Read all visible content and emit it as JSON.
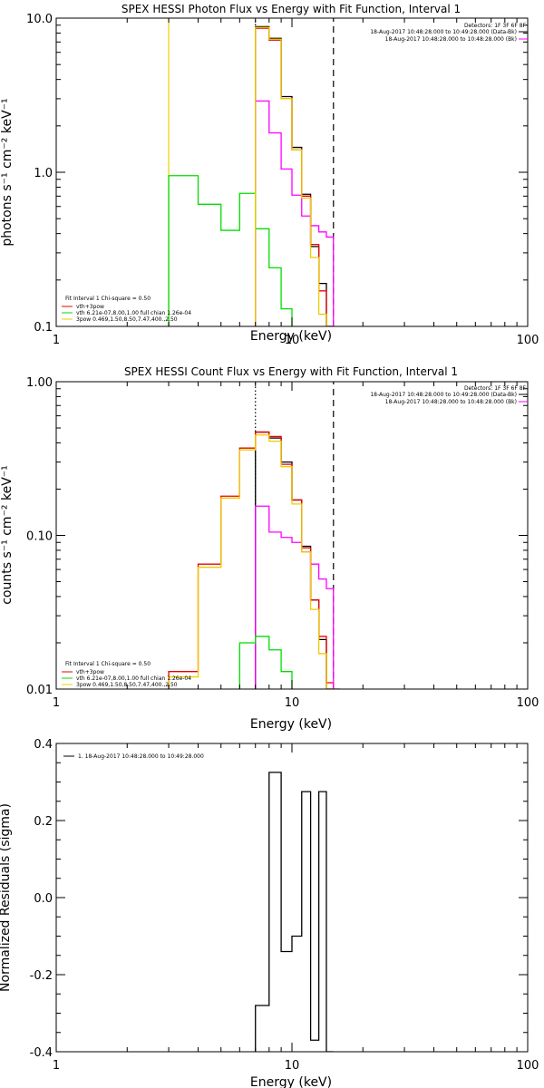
{
  "chart_data": [
    {
      "type": "line",
      "title": "SPEX HESSI Photon Flux vs Energy with Fit Function, Interval 1",
      "xlabel": "Energy (keV)",
      "ylabel": "photons s⁻¹ cm⁻² keV⁻¹",
      "xscale": "log",
      "yscale": "log",
      "xlim": [
        1,
        100
      ],
      "ylim": [
        0.1,
        10
      ],
      "xticks": [
        1,
        10,
        100
      ],
      "xtick_labels": [
        "1",
        "10",
        "100"
      ],
      "yticks": [
        0.1,
        1,
        10
      ],
      "ytick_labels": [
        "0.1",
        "1.0",
        "10.0"
      ],
      "top_right_labels": [
        "Detectors: 1F 3F 6F 8F",
        "18-Aug-2017 10:48:28.000 to 10:49:28.000 (Data-Bk)",
        "18-Aug-2017 10:48:28.000 to 10:48:28.000 (Bk)"
      ],
      "fit_labels": [
        "Fit Interval 1    Chi-square = 0.50",
        "vth+3pow",
        "vth 6.21e-07,8.00,1.00  full chian 1.26e-04",
        "3pow 0.469,1.50,8.50,7.47,400.,2.50"
      ],
      "series": [
        {
          "color": "#000000",
          "edges": [
            7,
            8,
            9,
            10,
            11,
            12,
            13,
            14,
            15
          ],
          "values": [
            8.8,
            7.4,
            3.1,
            1.45,
            0.72,
            0.33,
            0.19,
            0.1
          ]
        },
        {
          "color": "#ee0000",
          "edges": [
            7,
            8,
            9,
            10,
            11,
            12,
            13,
            14,
            15
          ],
          "values": [
            8.6,
            7.2,
            3.0,
            1.4,
            0.7,
            0.34,
            0.17,
            0.1
          ]
        },
        {
          "color": "#ff00ff",
          "edges": [
            7,
            8,
            9,
            10,
            11,
            12,
            13,
            14,
            15
          ],
          "values": [
            2.9,
            1.8,
            1.05,
            0.71,
            0.52,
            0.45,
            0.41,
            0.38
          ]
        },
        {
          "color": "#00dd00",
          "edges": [
            3,
            4,
            5,
            6,
            7,
            8,
            9,
            10
          ],
          "values": [
            0.95,
            0.62,
            0.42,
            0.73,
            0.43,
            0.24,
            0.13,
            0.1
          ]
        },
        {
          "color": "#eecc00",
          "edges": [
            7,
            8,
            9,
            10,
            11,
            12,
            13,
            14,
            15
          ],
          "values": [
            8.7,
            7.3,
            3.0,
            1.4,
            0.68,
            0.28,
            0.12,
            0.1
          ]
        }
      ],
      "verticals": [
        {
          "x": 3,
          "color": "#eecc00",
          "style": "solid",
          "from": 0.1,
          "to": 10
        },
        {
          "x": 7,
          "color": "#ff00ff",
          "style": "solid",
          "from": 0.1,
          "to": 2.9
        },
        {
          "x": 7,
          "color": "#00dd00",
          "style": "solid",
          "from": 0.1,
          "to": 0.43
        },
        {
          "x": 7,
          "color": "#000000",
          "style": "dotted",
          "from": 0.1,
          "to": 10
        },
        {
          "x": 15,
          "color": "#000000",
          "style": "dashed",
          "from": 0.1,
          "to": 10
        }
      ]
    },
    {
      "type": "line",
      "title": "SPEX HESSI Count Flux vs Energy with Fit Function, Interval 1",
      "xlabel": "Energy (keV)",
      "ylabel": "counts s⁻¹ cm⁻² keV⁻¹",
      "xscale": "log",
      "yscale": "log",
      "xlim": [
        1,
        100
      ],
      "ylim": [
        0.01,
        1
      ],
      "xticks": [
        1,
        10,
        100
      ],
      "xtick_labels": [
        "1",
        "10",
        "100"
      ],
      "yticks": [
        0.01,
        0.1,
        1
      ],
      "ytick_labels": [
        "0.01",
        "0.10",
        "1.00"
      ],
      "top_right_labels": [
        "Detectors: 1F 3F 6F 8F",
        "18-Aug-2017 10:48:28.000 to 10:49:28.000 (Data-Bk)",
        "18-Aug-2017 10:48:28.000 to 10:48:28.000 (Bk)"
      ],
      "fit_labels": [
        "Fit Interval 1    Chi-square = 0.50",
        "vth+3pow",
        "vth 6.21e-07,8.00,1.00  full chian 1.26e-04",
        "3pow 0.469,1.50,8.50,7.47,400.,2.50"
      ],
      "series": [
        {
          "color": "#000000",
          "edges": [
            7,
            8,
            9,
            10,
            11,
            12,
            13,
            14,
            15
          ],
          "values": [
            0.47,
            0.43,
            0.3,
            0.17,
            0.085,
            0.038,
            0.021,
            0.01
          ]
        },
        {
          "color": "#ee0000",
          "edges": [
            3,
            4,
            5,
            6,
            7,
            8,
            9,
            10,
            11,
            12,
            13,
            14,
            15,
            16
          ],
          "values": [
            0.013,
            0.065,
            0.18,
            0.37,
            0.47,
            0.44,
            0.29,
            0.17,
            0.083,
            0.038,
            0.022,
            0.011,
            0.01
          ]
        },
        {
          "color": "#ff00ff",
          "edges": [
            7,
            8,
            9,
            10,
            11,
            12,
            13,
            14,
            15
          ],
          "values": [
            0.155,
            0.105,
            0.097,
            0.09,
            0.078,
            0.065,
            0.052,
            0.045
          ]
        },
        {
          "color": "#00dd00",
          "edges": [
            6,
            7,
            8,
            9,
            10
          ],
          "values": [
            0.02,
            0.022,
            0.018,
            0.013
          ]
        },
        {
          "color": "#eecc00",
          "edges": [
            3,
            4,
            5,
            6,
            7,
            8,
            9,
            10,
            11,
            12,
            13,
            14,
            15
          ],
          "values": [
            0.012,
            0.062,
            0.175,
            0.36,
            0.45,
            0.41,
            0.28,
            0.16,
            0.078,
            0.033,
            0.017,
            0.01
          ]
        }
      ],
      "verticals": [
        {
          "x": 3,
          "color": "#eecc00",
          "style": "solid",
          "from": 0.01,
          "to": 0.012
        },
        {
          "x": 7,
          "color": "#ff00ff",
          "style": "solid",
          "from": 0.01,
          "to": 0.155
        },
        {
          "x": 7,
          "color": "#000000",
          "style": "dotted",
          "from": 0.01,
          "to": 1
        },
        {
          "x": 15,
          "color": "#000000",
          "style": "dashed",
          "from": 0.01,
          "to": 1
        }
      ]
    },
    {
      "type": "line",
      "title": "",
      "xlabel": "Energy (keV)",
      "ylabel": "Normalized Residuals (sigma)",
      "xscale": "log",
      "yscale": "linear",
      "xlim": [
        1,
        100
      ],
      "ylim": [
        -0.4,
        0.4
      ],
      "xticks": [
        1,
        10,
        100
      ],
      "xtick_labels": [
        "1",
        "10",
        "100"
      ],
      "yticks": [
        -0.4,
        -0.2,
        0.0,
        0.2,
        0.4
      ],
      "ytick_labels": [
        "-0.4",
        "-0.2",
        "0.0",
        "0.2",
        "0.4"
      ],
      "legend": "1. 18-Aug-2017 10:48:28.000 to 10:49:28.000",
      "series": [
        {
          "color": "#000000",
          "edges": [
            7,
            8,
            9,
            10,
            11,
            12,
            13,
            14,
            15
          ],
          "values": [
            -0.28,
            0.325,
            -0.14,
            -0.1,
            0.275,
            -0.37,
            0.275,
            -0.4
          ]
        }
      ]
    }
  ]
}
